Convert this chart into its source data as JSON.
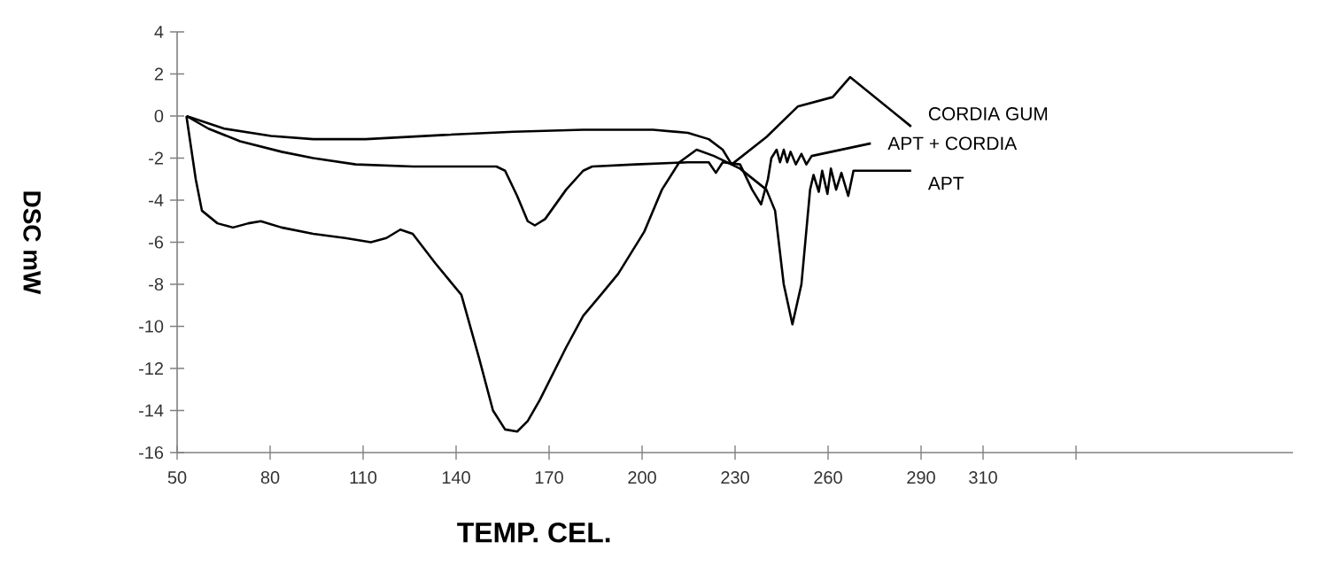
{
  "chart_data": {
    "type": "line",
    "xlabel": "TEMP. CEL.",
    "ylabel": "DSC mW",
    "xlim": [
      50,
      410
    ],
    "ylim": [
      -16,
      4
    ],
    "xticks": [
      50,
      80,
      110,
      140,
      170,
      200,
      230,
      260,
      290,
      310,
      {
        "value": 340,
        "label": null
      }
    ],
    "yticks": [
      -16,
      -14,
      -12,
      -10,
      -8,
      -6,
      -4,
      -2,
      0,
      2,
      4
    ],
    "grid": false,
    "marker": "none",
    "line_style": "solid",
    "series": [
      {
        "name": "CORDIA GUM",
        "color": "#000000",
        "x": [
          53,
          65.2,
          80.3,
          93.9,
          110.8,
          136.1,
          158.6,
          181,
          203.5,
          214.8,
          221.5,
          226,
          228.9,
          240.1,
          250.2,
          261.5,
          267.1,
          286.8
        ],
        "values": [
          0,
          -0.6,
          -0.95,
          -1.1,
          -1.1,
          -0.9,
          -0.75,
          -0.65,
          -0.65,
          -0.8,
          -1.1,
          -1.6,
          -2.3,
          -1.0,
          0.45,
          0.9,
          1.85,
          -0.5
        ]
      },
      {
        "name": "APT + CORDIA",
        "color": "#000000",
        "x": [
          53,
          60.1,
          70.3,
          83.7,
          93.9,
          107.6,
          126.1,
          141.7,
          153,
          155.8,
          159.7,
          163.1,
          165.4,
          168.7,
          175.5,
          181,
          183.9,
          197.9,
          214.8,
          221.5,
          223.8,
          226,
          231.6,
          235.5,
          238.4,
          240.6,
          241.7,
          243.4,
          244.5,
          245.7,
          246.8,
          247.9,
          249.6,
          251.4,
          253,
          254.7,
          273.8
        ],
        "values": [
          0,
          -0.6,
          -1.2,
          -1.7,
          -2.0,
          -2.3,
          -2.4,
          -2.4,
          -2.4,
          -2.6,
          -3.8,
          -5.0,
          -5.2,
          -4.9,
          -3.5,
          -2.6,
          -2.4,
          -2.3,
          -2.2,
          -2.2,
          -2.7,
          -2.2,
          -2.3,
          -3.5,
          -4.2,
          -3.0,
          -2.0,
          -1.6,
          -2.2,
          -1.6,
          -2.2,
          -1.7,
          -2.3,
          -1.8,
          -2.3,
          -1.9,
          -1.3
        ]
      },
      {
        "name": "APT",
        "color": "#000000",
        "x": [
          53,
          56,
          58,
          63,
          68,
          73,
          77,
          83.7,
          93.9,
          104.2,
          112.5,
          117.5,
          122,
          126,
          133.3,
          141.7,
          147.4,
          151.9,
          155.8,
          159.7,
          163.1,
          167,
          175.5,
          181,
          186.7,
          192.3,
          200.7,
          206.4,
          212,
          217.6,
          223.2,
          231.6,
          240.1,
          242.9,
          245.7,
          248.5,
          251.4,
          254.2,
          255.3,
          257,
          258.1,
          259.8,
          260.9,
          262.6,
          264.3,
          266.5,
          268.2,
          286.8
        ],
        "values": [
          0,
          -3,
          -4.5,
          -5.1,
          -5.3,
          -5.1,
          -5.0,
          -5.3,
          -5.6,
          -5.8,
          -6.0,
          -5.8,
          -5.4,
          -5.6,
          -7.0,
          -8.5,
          -11.5,
          -14.0,
          -14.9,
          -15.0,
          -14.5,
          -13.5,
          -11,
          -9.5,
          -8.5,
          -7.5,
          -5.5,
          -3.5,
          -2.2,
          -1.6,
          -1.9,
          -2.5,
          -3.5,
          -4.5,
          -8,
          -9.9,
          -8,
          -3.5,
          -2.8,
          -3.6,
          -2.6,
          -3.7,
          -2.5,
          -3.5,
          -2.7,
          -3.8,
          -2.6,
          -2.6
        ]
      }
    ]
  }
}
